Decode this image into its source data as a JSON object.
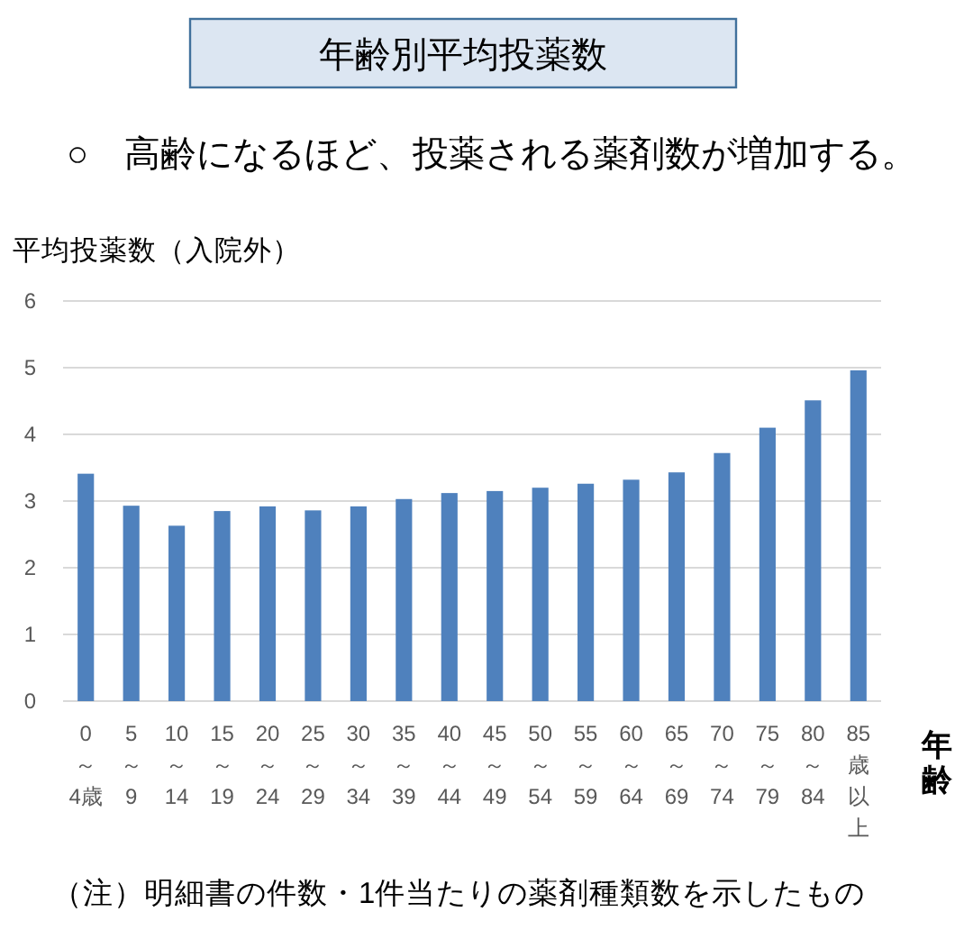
{
  "chart_data": {
    "type": "bar",
    "title": "年齢別平均投薬数",
    "subtitle": "○　高齢になるほど、投薬される薬剤数が増加する。",
    "ylabel": "平均投薬数（入院外）",
    "xlabel": "年齢",
    "annotations": [
      "（注）明細書の件数・1件当たりの薬剤種類数を示したもの"
    ],
    "categories": [
      "0\n～\n4歳",
      "5\n～\n9",
      "10\n～\n14",
      "15\n～\n19",
      "20\n～\n24",
      "25\n～\n29",
      "30\n～\n34",
      "35\n～\n39",
      "40\n～\n44",
      "45\n～\n49",
      "50\n～\n54",
      "55\n～\n59",
      "60\n～\n64",
      "65\n～\n69",
      "70\n～\n74",
      "75\n～\n79",
      "80\n～\n84",
      "85歳以上"
    ],
    "values": [
      3.41,
      2.93,
      2.63,
      2.85,
      2.92,
      2.86,
      2.92,
      3.03,
      3.12,
      3.15,
      3.2,
      3.26,
      3.32,
      3.43,
      3.72,
      4.1,
      4.51,
      4.96
    ],
    "color": "#4f81bd",
    "ylim": [
      0,
      6
    ],
    "yticks": [
      0,
      1,
      2,
      3,
      4,
      5,
      6
    ],
    "grid": "y"
  }
}
